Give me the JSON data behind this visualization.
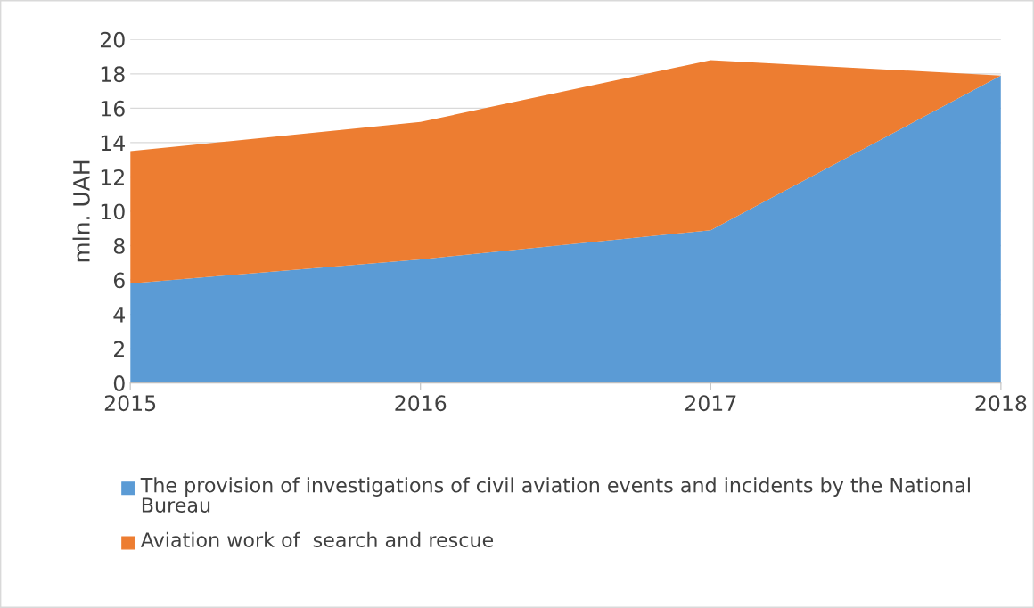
{
  "chart_data": {
    "type": "area",
    "stacked": true,
    "ylabel": "mln. UAH",
    "categories": [
      "2015",
      "2016",
      "2017",
      "2018"
    ],
    "series": [
      {
        "name": "The provision of investigations of civil aviation events and incidents by the National Bureau",
        "color": "#5b9bd5",
        "values": [
          5.8,
          7.2,
          8.9,
          17.9
        ]
      },
      {
        "name": "Aviation work of  search and rescue",
        "color": "#ed7d31",
        "values": [
          7.7,
          8.0,
          9.9,
          0
        ]
      }
    ],
    "ylim": [
      0,
      20
    ],
    "yticks": [
      0,
      2,
      4,
      6,
      8,
      10,
      12,
      14,
      16,
      18,
      20
    ],
    "grid": "y",
    "legend": "bottom"
  }
}
